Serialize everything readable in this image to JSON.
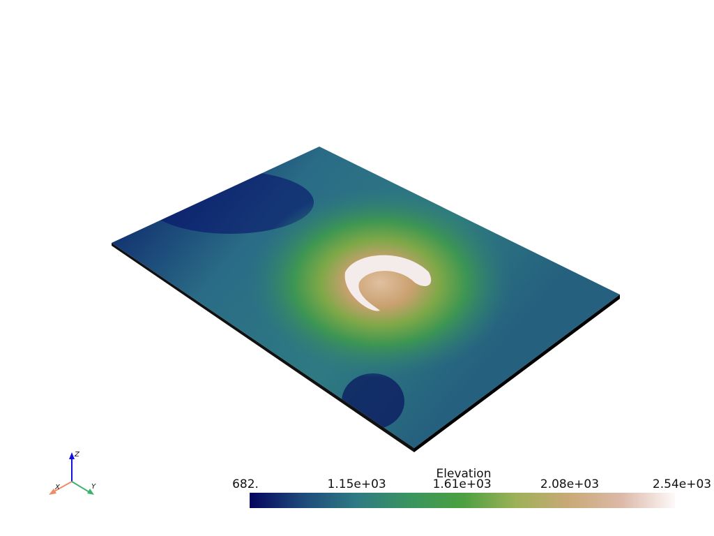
{
  "scalar_bar": {
    "title": "Elevation",
    "range": [
      682,
      2540
    ],
    "ticks": [
      {
        "value": 682,
        "label": "682."
      },
      {
        "value": 1150,
        "label": "1.15e+03"
      },
      {
        "value": 1610,
        "label": "1.61e+03"
      },
      {
        "value": 2080,
        "label": "2.08e+03"
      },
      {
        "value": 2540,
        "label": "2.54e+03"
      }
    ],
    "colormap": [
      "#05055e",
      "#1e4a7a",
      "#2e7a84",
      "#3a9460",
      "#4ba040",
      "#9db158",
      "#c9a977",
      "#dcb9a8",
      "#fdf9f9"
    ]
  },
  "orientation_axes": {
    "x": "X",
    "y": "Y",
    "z": "Z"
  }
}
